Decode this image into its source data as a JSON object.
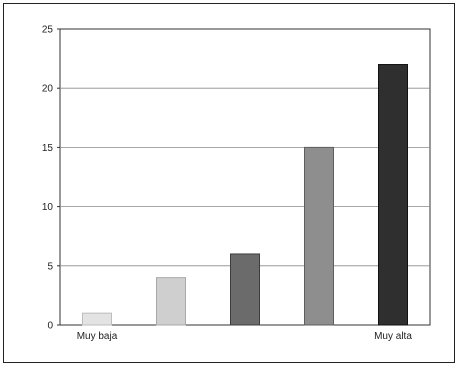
{
  "chart_data": {
    "type": "bar",
    "categories": [
      "Muy baja",
      "",
      "",
      "",
      "Muy alta"
    ],
    "values": [
      1,
      4,
      6,
      15,
      22
    ],
    "title": "",
    "xlabel": "",
    "ylabel": "",
    "ylim": [
      0,
      25
    ],
    "yticks": [
      "0",
      "5",
      "10",
      "15",
      "20",
      "25"
    ],
    "grid": true,
    "legend": "none",
    "bar_colors": [
      "#e3e3e3",
      "#cfcfcf",
      "#6b6b6b",
      "#8e8e8e",
      "#2f2f2f"
    ],
    "bar_edge_colors": [
      "#bdbdbd",
      "#a8a8a8",
      "#3d3d3d",
      "#5e5e5e",
      "#111111"
    ]
  }
}
